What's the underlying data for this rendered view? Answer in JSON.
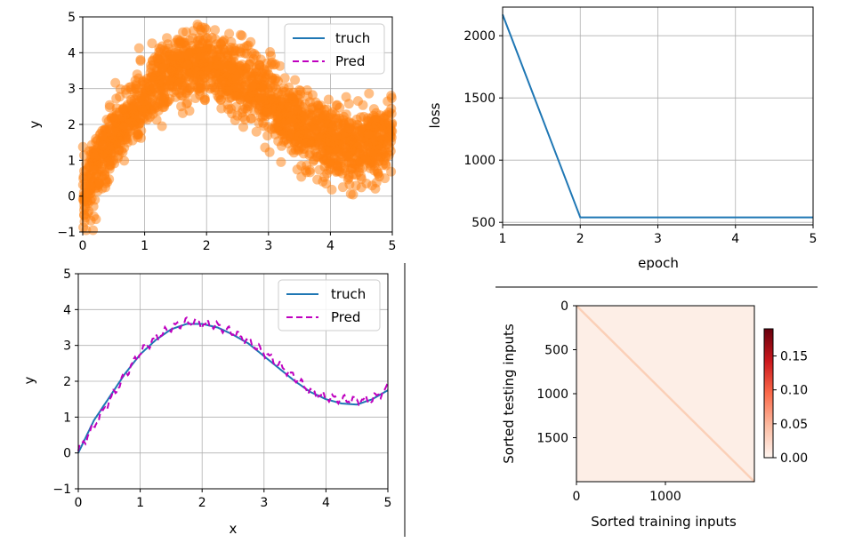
{
  "chart_data": [
    {
      "id": "scatter-top-left",
      "type": "scatter",
      "xlabel": "",
      "ylabel": "y",
      "xlim": [
        0,
        5
      ],
      "ylim": [
        -1,
        5
      ],
      "xticks": [
        "0",
        "1",
        "2",
        "3",
        "4",
        "5"
      ],
      "yticks": [
        "−1",
        "0",
        "1",
        "2",
        "3",
        "4",
        "5"
      ],
      "grid": true,
      "legend": {
        "position": "top-right",
        "entries": [
          "truch",
          "Pred"
        ]
      },
      "series": [
        {
          "name": "truch",
          "kind": "line",
          "color": "#1f77b4"
        },
        {
          "name": "Pred",
          "kind": "dashed-line",
          "color": "#bf00bf"
        },
        {
          "kind": "scatter",
          "color": "#ff7f0e",
          "opacity": 0.5,
          "n": 2000,
          "noise_sd": 0.5
        }
      ],
      "trend_x": [
        0,
        0.25,
        0.5,
        0.75,
        1,
        1.25,
        1.5,
        1.75,
        2,
        2.25,
        2.5,
        2.75,
        3,
        3.25,
        3.5,
        3.75,
        4,
        4.25,
        4.5,
        4.75,
        5
      ],
      "trend_y": [
        0,
        0.9,
        1.55,
        2.2,
        2.75,
        3.15,
        3.45,
        3.6,
        3.6,
        3.5,
        3.3,
        3.05,
        2.7,
        2.35,
        2.0,
        1.7,
        1.5,
        1.38,
        1.35,
        1.5,
        1.75
      ]
    },
    {
      "id": "loss-top-right",
      "type": "line",
      "xlabel": "epoch",
      "ylabel": "loss",
      "xlim": [
        1,
        5
      ],
      "ylim": [
        480,
        2230
      ],
      "xticks": [
        "1",
        "2",
        "3",
        "4",
        "5"
      ],
      "yticks": [
        "500",
        "1000",
        "1500",
        "2000"
      ],
      "grid": true,
      "series": [
        {
          "name": "",
          "color": "#1f77b4",
          "x": [
            1,
            2,
            3,
            4,
            5
          ],
          "y": [
            2170,
            540,
            540,
            540,
            540
          ]
        }
      ]
    },
    {
      "id": "fit-bottom-left",
      "type": "line",
      "xlabel": "x",
      "ylabel": "y",
      "xlim": [
        0,
        5
      ],
      "ylim": [
        -1,
        5
      ],
      "xticks": [
        "0",
        "1",
        "2",
        "3",
        "4",
        "5"
      ],
      "yticks": [
        "−1",
        "0",
        "1",
        "2",
        "3",
        "4",
        "5"
      ],
      "grid": true,
      "legend": {
        "position": "top-right",
        "entries": [
          "truch",
          "Pred"
        ]
      },
      "series": [
        {
          "name": "truch",
          "color": "#1f77b4",
          "x": [
            0,
            0.25,
            0.5,
            0.75,
            1,
            1.25,
            1.5,
            1.75,
            2,
            2.25,
            2.5,
            2.75,
            3,
            3.25,
            3.5,
            3.75,
            4,
            4.25,
            4.5,
            4.75,
            5
          ],
          "y": [
            0,
            0.9,
            1.55,
            2.2,
            2.75,
            3.15,
            3.45,
            3.6,
            3.6,
            3.5,
            3.3,
            3.05,
            2.7,
            2.35,
            2.0,
            1.7,
            1.5,
            1.38,
            1.35,
            1.5,
            1.75
          ]
        },
        {
          "name": "Pred",
          "color": "#bf00bf",
          "dashed": true,
          "wiggle": 0.09,
          "x": [
            0,
            0.25,
            0.5,
            0.75,
            1,
            1.25,
            1.5,
            1.75,
            2,
            2.25,
            2.5,
            2.75,
            3,
            3.25,
            3.5,
            3.75,
            4,
            4.25,
            4.5,
            4.75,
            5
          ],
          "y": [
            0.05,
            0.75,
            1.45,
            2.15,
            2.8,
            3.2,
            3.5,
            3.65,
            3.6,
            3.55,
            3.35,
            3.1,
            2.8,
            2.45,
            2.1,
            1.7,
            1.55,
            1.5,
            1.45,
            1.5,
            1.8
          ]
        }
      ]
    },
    {
      "id": "heatmap-bottom-right",
      "type": "heatmap",
      "xlabel": "Sorted training inputs",
      "ylabel": "Sorted testing inputs",
      "xlim": [
        0,
        2000
      ],
      "ylim": [
        2000,
        0
      ],
      "xticks": [
        "0",
        "1000"
      ],
      "yticks": [
        "0",
        "500",
        "1000",
        "1500"
      ],
      "colorbar": {
        "ticks": [
          "0.00",
          "0.05",
          "0.10",
          "0.15"
        ],
        "min": 0,
        "max": 0.19
      },
      "background_color": "#fdeee6",
      "diagonal_color": "#fbd0b8",
      "colormap": "Reds"
    }
  ]
}
